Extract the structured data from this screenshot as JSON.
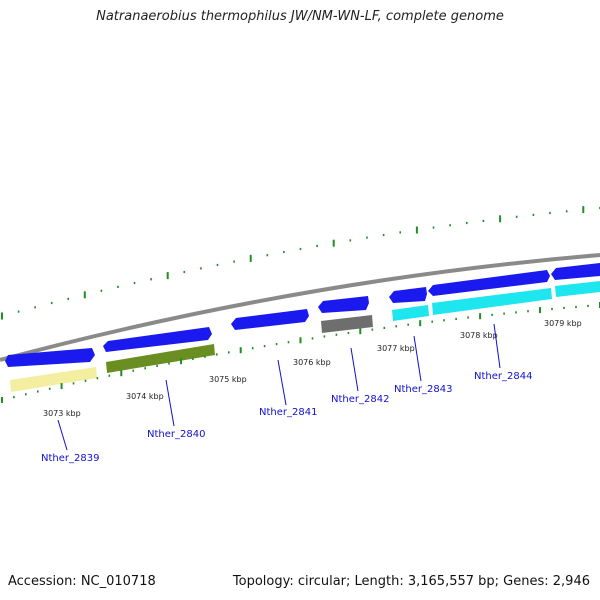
{
  "title": "Natranaerobius thermophilus JW/NM-WN-LF, complete genome",
  "footer": {
    "accession": "Accession: NC_010718",
    "summary": "Topology: circular; Length: 3,165,557 bp; Genes: 2,946"
  },
  "colors": {
    "forward_gene": "#1a1aee",
    "hypothetical": "#f3eea0",
    "olive": "#6b8e23",
    "gray": "#6e6e6e",
    "cyan": "#1ee6ee",
    "backbone": "#8a8a8a",
    "ticks": "#1f8f1f",
    "label": "#1111cc"
  },
  "kbp_ticks": [
    "3073 kbp",
    "3074 kbp",
    "3075 kbp",
    "3076 kbp",
    "3077 kbp",
    "3078 kbp",
    "3079 kbp"
  ],
  "gene_labels": [
    "Nther_2839",
    "Nther_2840",
    "Nther_2841",
    "Nther_2842",
    "Nther_2843",
    "Nther_2844"
  ]
}
